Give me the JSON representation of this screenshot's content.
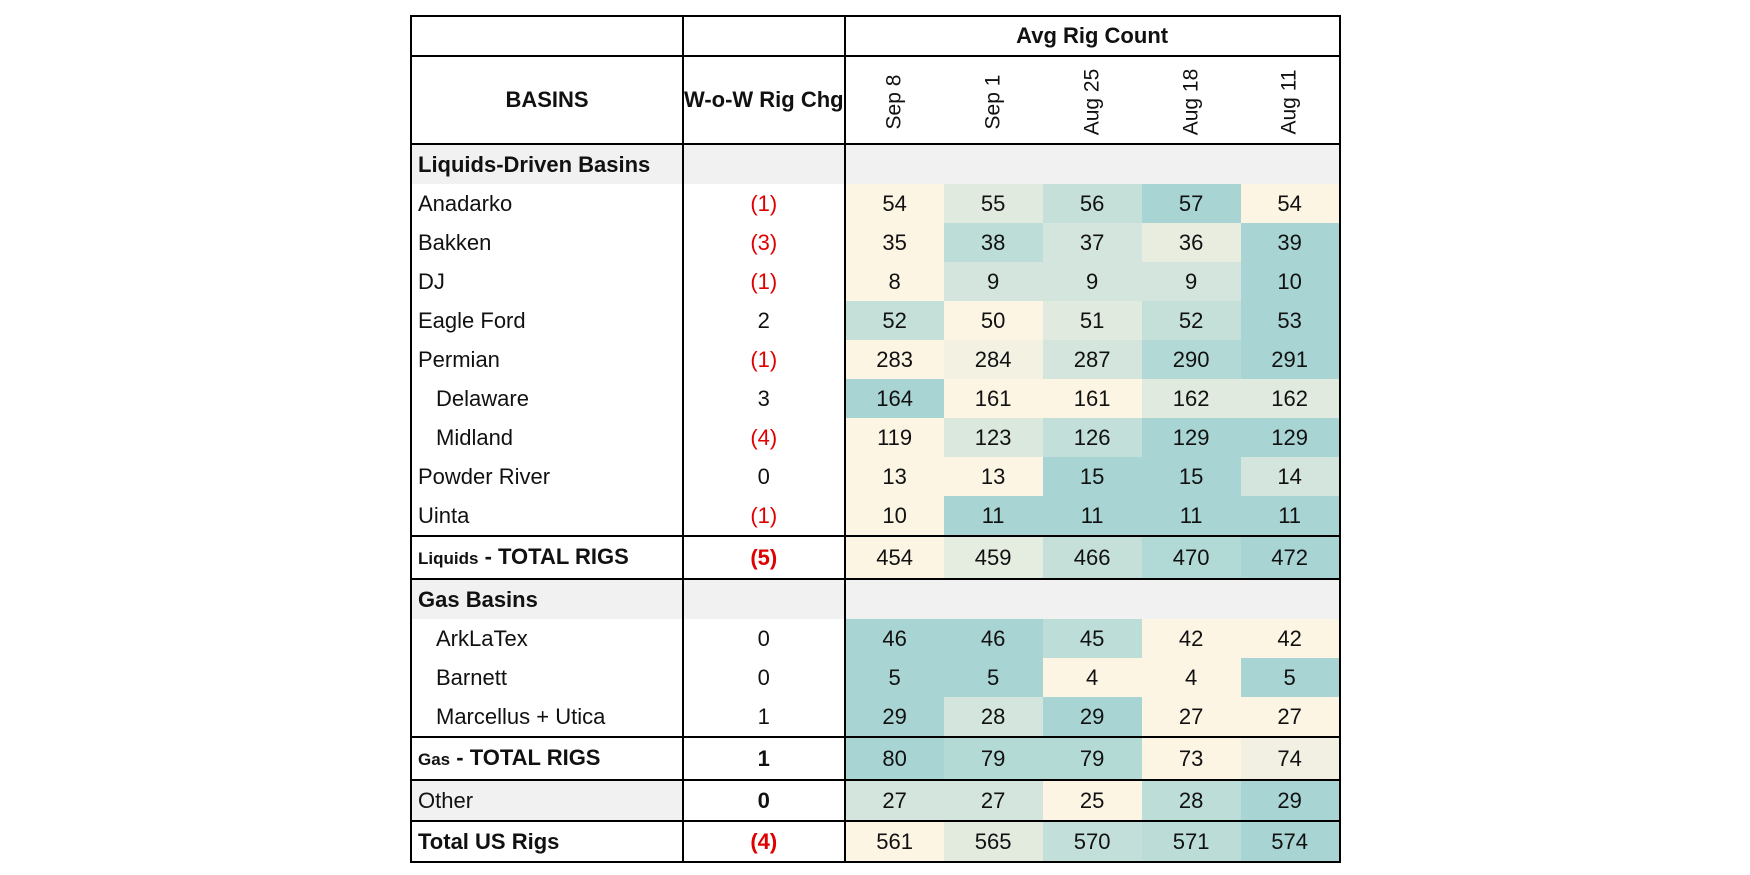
{
  "chart_data": {
    "type": "table",
    "group_header": "Avg Rig Count",
    "basin_header": "BASINS",
    "change_header": "W-o-W Rig Chg",
    "columns": [
      "Sep 8",
      "Sep 1",
      "Aug 25",
      "Aug 18",
      "Aug 11"
    ],
    "heat_colors": {
      "low": "#fdf5e4",
      "high": "#a8d5d4"
    },
    "rows": [
      {
        "kind": "section",
        "label": "Liquids-Driven Basins"
      },
      {
        "kind": "data",
        "label": "Anadarko",
        "chg": "(1)",
        "values": [
          54,
          55,
          56,
          57,
          54
        ]
      },
      {
        "kind": "data",
        "label": "Bakken",
        "chg": "(3)",
        "values": [
          35,
          38,
          37,
          36,
          39
        ]
      },
      {
        "kind": "data",
        "label": "DJ",
        "chg": "(1)",
        "values": [
          8,
          9,
          9,
          9,
          10
        ]
      },
      {
        "kind": "data",
        "label": "Eagle Ford",
        "chg": "2",
        "values": [
          52,
          50,
          51,
          52,
          53
        ]
      },
      {
        "kind": "data",
        "label": "Permian",
        "chg": "(1)",
        "values": [
          283,
          284,
          287,
          290,
          291
        ]
      },
      {
        "kind": "data",
        "label": "Delaware",
        "indent": true,
        "chg": "3",
        "values": [
          164,
          161,
          161,
          162,
          162
        ]
      },
      {
        "kind": "data",
        "label": "Midland",
        "indent": true,
        "chg": "(4)",
        "values": [
          119,
          123,
          126,
          129,
          129
        ]
      },
      {
        "kind": "data",
        "label": "Powder River",
        "chg": "0",
        "values": [
          13,
          13,
          15,
          15,
          14
        ]
      },
      {
        "kind": "data",
        "label": "Uinta",
        "chg": "(1)",
        "values": [
          10,
          11,
          11,
          11,
          11
        ]
      },
      {
        "kind": "total",
        "label_prefix": "Liquids",
        "label_suffix": " - TOTAL RIGS",
        "chg": "(5)",
        "values": [
          454,
          459,
          466,
          470,
          472
        ]
      },
      {
        "kind": "section",
        "label": "Gas Basins"
      },
      {
        "kind": "data",
        "label": "ArkLaTex",
        "indent": true,
        "chg": "0",
        "values": [
          46,
          46,
          45,
          42,
          42
        ]
      },
      {
        "kind": "data",
        "label": "Barnett",
        "indent": true,
        "chg": "0",
        "values": [
          5,
          5,
          4,
          4,
          5
        ]
      },
      {
        "kind": "data",
        "label": "Marcellus + Utica",
        "indent": true,
        "chg": "1",
        "values": [
          29,
          28,
          29,
          27,
          27
        ]
      },
      {
        "kind": "total",
        "label_prefix": "Gas",
        "label_suffix": " - TOTAL RIGS",
        "chg": "1",
        "values": [
          80,
          79,
          79,
          73,
          74
        ]
      },
      {
        "kind": "other",
        "label": "Other",
        "chg": "0",
        "values": [
          27,
          27,
          25,
          28,
          29
        ]
      },
      {
        "kind": "grand",
        "label": "Total US Rigs",
        "chg": "(4)",
        "values": [
          561,
          565,
          570,
          571,
          574
        ]
      }
    ]
  }
}
